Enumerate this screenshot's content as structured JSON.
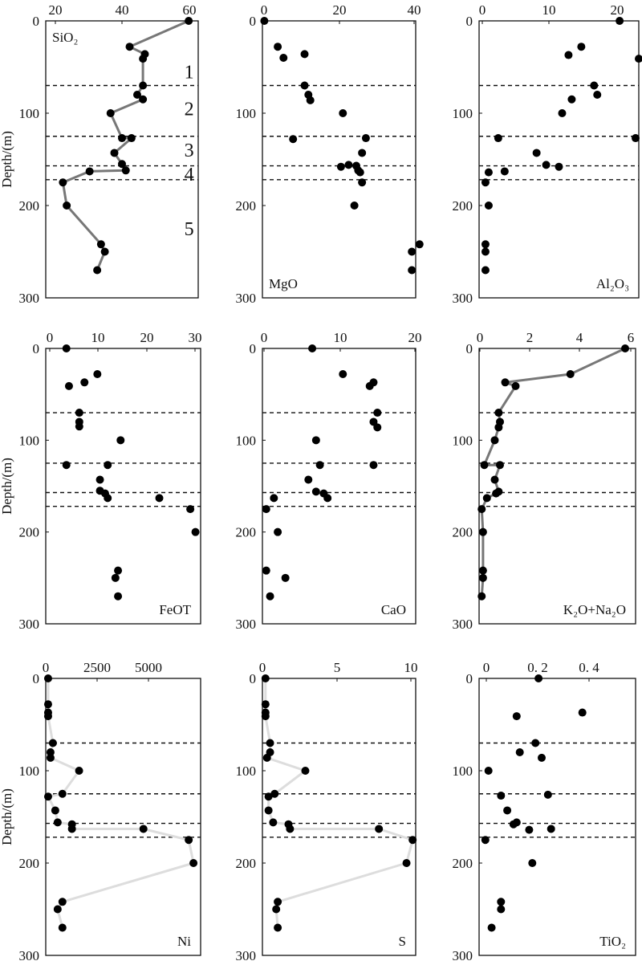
{
  "chart_data": [
    {
      "type": "scatter",
      "title": "SiO₂",
      "label_position": "top-left",
      "x_ticks": [
        20,
        40,
        60
      ],
      "xlim": [
        20,
        60
      ],
      "ylim": [
        0,
        300
      ],
      "y_ticks": [
        0,
        100,
        200,
        300
      ],
      "ylabel": "Depth/(m)",
      "connected": true,
      "line_color": "#777777",
      "marker_color": "#000000",
      "zone_boundaries": [
        70,
        125,
        157,
        172
      ],
      "zone_labels": [
        {
          "text": "1",
          "depth": 55
        },
        {
          "text": "2",
          "depth": 95
        },
        {
          "text": "3",
          "depth": 140
        },
        {
          "text": "4",
          "depth": 166
        },
        {
          "text": "5",
          "depth": 225
        }
      ],
      "points": [
        {
          "x": 57.5,
          "y": 0
        },
        {
          "x": 42,
          "y": 28
        },
        {
          "x": 46,
          "y": 36
        },
        {
          "x": 45.5,
          "y": 41
        },
        {
          "x": 45.5,
          "y": 70
        },
        {
          "x": 44,
          "y": 80
        },
        {
          "x": 45.5,
          "y": 85
        },
        {
          "x": 37,
          "y": 100
        },
        {
          "x": 40,
          "y": 127
        },
        {
          "x": 42.5,
          "y": 127
        },
        {
          "x": 38,
          "y": 143
        },
        {
          "x": 40,
          "y": 155
        },
        {
          "x": 41,
          "y": 162
        },
        {
          "x": 31.5,
          "y": 163
        },
        {
          "x": 24.5,
          "y": 175
        },
        {
          "x": 25.5,
          "y": 200
        },
        {
          "x": 34.5,
          "y": 242
        },
        {
          "x": 35.5,
          "y": 250
        },
        {
          "x": 33.5,
          "y": 270
        }
      ]
    },
    {
      "type": "scatter",
      "title": "MgO",
      "label_position": "bottom-left",
      "x_ticks": [
        0,
        20,
        40
      ],
      "xlim": [
        0,
        40
      ],
      "ylim": [
        0,
        300
      ],
      "y_ticks": [
        0,
        100,
        200,
        300
      ],
      "connected": false,
      "marker_color": "#000000",
      "zone_boundaries": [
        70,
        125,
        157,
        172
      ],
      "points": [
        {
          "x": 0.5,
          "y": 0
        },
        {
          "x": 4,
          "y": 28
        },
        {
          "x": 11,
          "y": 36
        },
        {
          "x": 5.5,
          "y": 40
        },
        {
          "x": 11,
          "y": 70
        },
        {
          "x": 12,
          "y": 80
        },
        {
          "x": 12.5,
          "y": 86
        },
        {
          "x": 21,
          "y": 100
        },
        {
          "x": 27,
          "y": 127
        },
        {
          "x": 8,
          "y": 128
        },
        {
          "x": 26,
          "y": 143
        },
        {
          "x": 22.5,
          "y": 156
        },
        {
          "x": 24.5,
          "y": 157
        },
        {
          "x": 20.5,
          "y": 158
        },
        {
          "x": 25,
          "y": 162
        },
        {
          "x": 25.5,
          "y": 164
        },
        {
          "x": 26,
          "y": 175
        },
        {
          "x": 24,
          "y": 200
        },
        {
          "x": 41,
          "y": 242
        },
        {
          "x": 39,
          "y": 250
        },
        {
          "x": 39,
          "y": 270
        }
      ]
    },
    {
      "type": "scatter",
      "title": "Al₂O₃",
      "label_position": "bottom-right",
      "x_ticks": [
        0,
        10,
        20
      ],
      "xlim": [
        0,
        25
      ],
      "ylim": [
        0,
        300
      ],
      "y_ticks": [
        0,
        100,
        200,
        300
      ],
      "connected": false,
      "marker_color": "#000000",
      "zone_boundaries": [
        70,
        125,
        157,
        172
      ],
      "points": [
        {
          "x": 22,
          "y": 0
        },
        {
          "x": 16,
          "y": 28
        },
        {
          "x": 14,
          "y": 37
        },
        {
          "x": 25,
          "y": 41
        },
        {
          "x": 18,
          "y": 70
        },
        {
          "x": 18.5,
          "y": 80
        },
        {
          "x": 14.5,
          "y": 85
        },
        {
          "x": 13,
          "y": 100
        },
        {
          "x": 3,
          "y": 127
        },
        {
          "x": 24.5,
          "y": 127
        },
        {
          "x": 9,
          "y": 143
        },
        {
          "x": 10.5,
          "y": 156
        },
        {
          "x": 12.5,
          "y": 158
        },
        {
          "x": 4,
          "y": 163
        },
        {
          "x": 1.5,
          "y": 164
        },
        {
          "x": 1,
          "y": 175
        },
        {
          "x": 1.5,
          "y": 200
        },
        {
          "x": 1,
          "y": 242
        },
        {
          "x": 1,
          "y": 250
        },
        {
          "x": 1,
          "y": 270
        }
      ]
    },
    {
      "type": "scatter",
      "title": "FeOT",
      "label_position": "bottom-right",
      "x_ticks": [
        0,
        10,
        20,
        30
      ],
      "xlim": [
        0,
        30
      ],
      "ylim": [
        0,
        300
      ],
      "y_ticks": [
        0,
        100,
        200,
        300
      ],
      "ylabel": "Depth/(m)",
      "connected": false,
      "marker_color": "#000000",
      "zone_boundaries": [
        70,
        125,
        157,
        172
      ],
      "points": [
        {
          "x": 4,
          "y": 0
        },
        {
          "x": 10,
          "y": 28
        },
        {
          "x": 7.5,
          "y": 37
        },
        {
          "x": 4.5,
          "y": 41
        },
        {
          "x": 6.5,
          "y": 70
        },
        {
          "x": 6.5,
          "y": 80
        },
        {
          "x": 6.5,
          "y": 85
        },
        {
          "x": 14.5,
          "y": 100
        },
        {
          "x": 4,
          "y": 127
        },
        {
          "x": 12,
          "y": 127
        },
        {
          "x": 10.5,
          "y": 143
        },
        {
          "x": 10.5,
          "y": 155
        },
        {
          "x": 11.5,
          "y": 158
        },
        {
          "x": 12,
          "y": 163
        },
        {
          "x": 22,
          "y": 163
        },
        {
          "x": 28,
          "y": 175
        },
        {
          "x": 29,
          "y": 200
        },
        {
          "x": 14,
          "y": 242
        },
        {
          "x": 13.5,
          "y": 250
        },
        {
          "x": 14,
          "y": 270
        }
      ]
    },
    {
      "type": "scatter",
      "title": "CaO",
      "label_position": "bottom-right",
      "x_ticks": [
        0,
        10,
        20
      ],
      "xlim": [
        0,
        20
      ],
      "ylim": [
        0,
        300
      ],
      "y_ticks": [
        0,
        100,
        200,
        300
      ],
      "connected": false,
      "marker_color": "#000000",
      "zone_boundaries": [
        70,
        125,
        157,
        172
      ],
      "points": [
        {
          "x": 6.5,
          "y": 0
        },
        {
          "x": 10.5,
          "y": 28
        },
        {
          "x": 14.5,
          "y": 37
        },
        {
          "x": 14,
          "y": 41
        },
        {
          "x": 15,
          "y": 70
        },
        {
          "x": 14.5,
          "y": 80
        },
        {
          "x": 15,
          "y": 86
        },
        {
          "x": 7,
          "y": 100
        },
        {
          "x": 14.5,
          "y": 127
        },
        {
          "x": 7.5,
          "y": 127
        },
        {
          "x": 6,
          "y": 143
        },
        {
          "x": 7,
          "y": 156
        },
        {
          "x": 8,
          "y": 158
        },
        {
          "x": 8.5,
          "y": 163
        },
        {
          "x": 1.5,
          "y": 163
        },
        {
          "x": 0.5,
          "y": 175
        },
        {
          "x": 2,
          "y": 200
        },
        {
          "x": 0.5,
          "y": 242
        },
        {
          "x": 3,
          "y": 250
        },
        {
          "x": 1,
          "y": 270
        }
      ]
    },
    {
      "type": "scatter",
      "title": "K₂O+Na₂O",
      "label_position": "bottom-right",
      "x_ticks": [
        0,
        2,
        4,
        6
      ],
      "xlim": [
        0,
        6
      ],
      "ylim": [
        0,
        300
      ],
      "y_ticks": [
        0,
        100,
        200,
        300
      ],
      "connected": true,
      "line_color": "#777777",
      "marker_color": "#000000",
      "zone_boundaries": [
        70,
        125,
        157,
        172
      ],
      "points": [
        {
          "x": 5.6,
          "y": 0
        },
        {
          "x": 3.5,
          "y": 28
        },
        {
          "x": 1.4,
          "y": 41
        },
        {
          "x": 1.0,
          "y": 37
        },
        {
          "x": 0.75,
          "y": 70
        },
        {
          "x": 0.8,
          "y": 80
        },
        {
          "x": 0.75,
          "y": 86
        },
        {
          "x": 0.6,
          "y": 100
        },
        {
          "x": 0.2,
          "y": 127
        },
        {
          "x": 0.8,
          "y": 127
        },
        {
          "x": 0.6,
          "y": 143
        },
        {
          "x": 0.75,
          "y": 156
        },
        {
          "x": 0.65,
          "y": 158
        },
        {
          "x": 0.3,
          "y": 163
        },
        {
          "x": 0.1,
          "y": 175
        },
        {
          "x": 0.15,
          "y": 200
        },
        {
          "x": 0.15,
          "y": 242
        },
        {
          "x": 0.15,
          "y": 250
        },
        {
          "x": 0.1,
          "y": 270
        }
      ]
    },
    {
      "type": "scatter",
      "title": "Ni",
      "label_position": "bottom-right",
      "x_ticks": [
        0,
        2500,
        5000
      ],
      "xlim": [
        0,
        6500
      ],
      "ylim": [
        0,
        300
      ],
      "y_ticks": [
        0,
        100,
        200,
        300
      ],
      "ylabel": "Depth/(m)",
      "connected": true,
      "line_color": "#dddddd",
      "marker_color": "#000000",
      "zone_boundaries": [
        70,
        125,
        157,
        172
      ],
      "points": [
        {
          "x": 100,
          "y": 0
        },
        {
          "x": 100,
          "y": 28
        },
        {
          "x": 100,
          "y": 37
        },
        {
          "x": 100,
          "y": 41
        },
        {
          "x": 300,
          "y": 70
        },
        {
          "x": 200,
          "y": 80
        },
        {
          "x": 200,
          "y": 86
        },
        {
          "x": 1400,
          "y": 100
        },
        {
          "x": 700,
          "y": 125
        },
        {
          "x": 100,
          "y": 128
        },
        {
          "x": 400,
          "y": 143
        },
        {
          "x": 500,
          "y": 156
        },
        {
          "x": 1100,
          "y": 158
        },
        {
          "x": 1100,
          "y": 163
        },
        {
          "x": 4100,
          "y": 163
        },
        {
          "x": 6000,
          "y": 175
        },
        {
          "x": 6200,
          "y": 200
        },
        {
          "x": 700,
          "y": 242
        },
        {
          "x": 500,
          "y": 250
        },
        {
          "x": 700,
          "y": 270
        }
      ]
    },
    {
      "type": "scatter",
      "title": "S",
      "label_position": "bottom-right",
      "x_ticks": [
        0,
        5,
        10
      ],
      "xlim": [
        0,
        10
      ],
      "ylim": [
        0,
        300
      ],
      "y_ticks": [
        0,
        100,
        200,
        300
      ],
      "connected": true,
      "line_color": "#dddddd",
      "marker_color": "#000000",
      "zone_boundaries": [
        70,
        125,
        157,
        172
      ],
      "points": [
        {
          "x": 0.2,
          "y": 0
        },
        {
          "x": 0.2,
          "y": 28
        },
        {
          "x": 0.2,
          "y": 37
        },
        {
          "x": 0.2,
          "y": 41
        },
        {
          "x": 0.5,
          "y": 70
        },
        {
          "x": 0.5,
          "y": 80
        },
        {
          "x": 0.3,
          "y": 86
        },
        {
          "x": 2.8,
          "y": 100
        },
        {
          "x": 0.8,
          "y": 125
        },
        {
          "x": 0.4,
          "y": 128
        },
        {
          "x": 0.4,
          "y": 143
        },
        {
          "x": 0.7,
          "y": 156
        },
        {
          "x": 1.7,
          "y": 158
        },
        {
          "x": 1.8,
          "y": 163
        },
        {
          "x": 7.6,
          "y": 163
        },
        {
          "x": 9.8,
          "y": 175
        },
        {
          "x": 9.4,
          "y": 200
        },
        {
          "x": 1.0,
          "y": 242
        },
        {
          "x": 0.9,
          "y": 250
        },
        {
          "x": 1.0,
          "y": 270
        }
      ]
    },
    {
      "type": "scatter",
      "title": "TiO₂",
      "label_position": "bottom-right",
      "x_ticks": [
        "0",
        "0. 2",
        "0. 4"
      ],
      "xlim": [
        0,
        0.5
      ],
      "ylim": [
        0,
        300
      ],
      "y_ticks": [
        0,
        100,
        200,
        300
      ],
      "connected": false,
      "marker_color": "#000000",
      "zone_boundaries": [
        70,
        125,
        157,
        172
      ],
      "points": [
        {
          "x": 0.19,
          "y": 0
        },
        {
          "x": 0.33,
          "y": 37
        },
        {
          "x": 0.12,
          "y": 41
        },
        {
          "x": 0.18,
          "y": 70
        },
        {
          "x": 0.13,
          "y": 80
        },
        {
          "x": 0.2,
          "y": 86
        },
        {
          "x": 0.03,
          "y": 100
        },
        {
          "x": 0.07,
          "y": 127
        },
        {
          "x": 0.22,
          "y": 126
        },
        {
          "x": 0.09,
          "y": 143
        },
        {
          "x": 0.12,
          "y": 156
        },
        {
          "x": 0.11,
          "y": 158
        },
        {
          "x": 0.16,
          "y": 164
        },
        {
          "x": 0.23,
          "y": 163
        },
        {
          "x": 0.02,
          "y": 175
        },
        {
          "x": 0.17,
          "y": 200
        },
        {
          "x": 0.07,
          "y": 242
        },
        {
          "x": 0.07,
          "y": 250
        },
        {
          "x": 0.04,
          "y": 270
        }
      ]
    }
  ]
}
